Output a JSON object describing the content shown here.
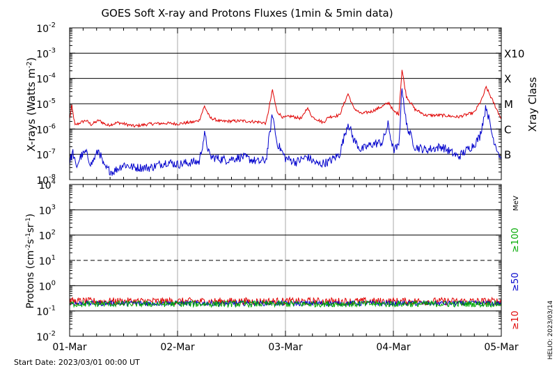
{
  "title": "GOES Soft X-ray and Protons Fluxes   (1min & 5min data)",
  "start_date": "Start Date: 2023/03/01 00:00 UT",
  "credit": "HELIO: 2023/03/14",
  "colors": {
    "xray_long": "#e00000",
    "xray_short": "#0000cc",
    "proton_10": "#e00000",
    "proton_50": "#0000cc",
    "proton_100": "#00aa00",
    "grid": "#000000",
    "day_lines": "#aaaaaa"
  },
  "chart_data": [
    {
      "type": "line",
      "panel": "xray",
      "ylabel_main": "X-rays (Watts m",
      "ylabel_exp": "-2",
      "ylabel_close": ")",
      "y_scale": "log",
      "ylim": [
        1e-08,
        0.01
      ],
      "y_ticks": [
        {
          "base": "10",
          "exp": "-8"
        },
        {
          "base": "10",
          "exp": "-7"
        },
        {
          "base": "10",
          "exp": "-6"
        },
        {
          "base": "10",
          "exp": "-5"
        },
        {
          "base": "10",
          "exp": "-4"
        },
        {
          "base": "10",
          "exp": "-3"
        },
        {
          "base": "10",
          "exp": "-2"
        }
      ],
      "right_label": "Xray Class",
      "class_labels": [
        {
          "label": "B",
          "value": 1e-07
        },
        {
          "label": "C",
          "value": 1e-06
        },
        {
          "label": "M",
          "value": 1e-05
        },
        {
          "label": "X",
          "value": 0.0001
        },
        {
          "label": "X10",
          "value": 0.001
        }
      ],
      "x_ticks": [
        "01-Mar",
        "02-Mar",
        "03-Mar",
        "04-Mar",
        "05-Mar"
      ],
      "xlim_days": [
        0,
        4
      ],
      "series": [
        {
          "name": "",
          "color_key": "xray_long",
          "points": [
            [
              0.0,
              2.5e-06
            ],
            [
              0.02,
              8e-06
            ],
            [
              0.05,
              1.4e-06
            ],
            [
              0.1,
              1.8e-06
            ],
            [
              0.15,
              2.2e-06
            ],
            [
              0.2,
              1.5e-06
            ],
            [
              0.27,
              2.2e-06
            ],
            [
              0.35,
              1.4e-06
            ],
            [
              0.45,
              1.8e-06
            ],
            [
              0.6,
              1.3e-06
            ],
            [
              0.75,
              1.6e-06
            ],
            [
              0.9,
              1.7e-06
            ],
            [
              1.0,
              1.6e-06
            ],
            [
              1.15,
              1.9e-06
            ],
            [
              1.2,
              2.2e-06
            ],
            [
              1.25,
              8e-06
            ],
            [
              1.3,
              2.8e-06
            ],
            [
              1.4,
              2e-06
            ],
            [
              1.6,
              2.1e-06
            ],
            [
              1.75,
              1.9e-06
            ],
            [
              1.82,
              1.7e-06
            ],
            [
              1.88,
              3.5e-05
            ],
            [
              1.92,
              5e-06
            ],
            [
              1.98,
              2.8e-06
            ],
            [
              2.05,
              3.2e-06
            ],
            [
              2.15,
              2.6e-06
            ],
            [
              2.2,
              7e-06
            ],
            [
              2.25,
              3e-06
            ],
            [
              2.35,
              1.8e-06
            ],
            [
              2.4,
              3e-06
            ],
            [
              2.5,
              3.5e-06
            ],
            [
              2.58,
              2.5e-05
            ],
            [
              2.63,
              7e-06
            ],
            [
              2.7,
              4e-06
            ],
            [
              2.8,
              5e-06
            ],
            [
              2.9,
              8e-06
            ],
            [
              2.96,
              1.1e-05
            ],
            [
              3.0,
              5e-06
            ],
            [
              3.05,
              4e-06
            ],
            [
              3.08,
              0.00022
            ],
            [
              3.12,
              2e-05
            ],
            [
              3.2,
              6e-06
            ],
            [
              3.3,
              3.5e-06
            ],
            [
              3.45,
              3.5e-06
            ],
            [
              3.6,
              3e-06
            ],
            [
              3.75,
              4.5e-06
            ],
            [
              3.82,
              1.5e-05
            ],
            [
              3.86,
              4.5e-05
            ],
            [
              3.92,
              1.3e-05
            ],
            [
              4.0,
              2.5e-06
            ]
          ]
        },
        {
          "name": "",
          "color_key": "xray_short",
          "points": [
            [
              0.0,
              5e-08
            ],
            [
              0.03,
              1.2e-07
            ],
            [
              0.06,
              3e-08
            ],
            [
              0.1,
              8e-08
            ],
            [
              0.15,
              1.2e-07
            ],
            [
              0.2,
              4e-08
            ],
            [
              0.27,
              1.5e-07
            ],
            [
              0.32,
              3e-08
            ],
            [
              0.4,
              2e-08
            ],
            [
              0.5,
              4e-08
            ],
            [
              0.6,
              3e-08
            ],
            [
              0.75,
              3e-08
            ],
            [
              0.9,
              5e-08
            ],
            [
              1.0,
              4e-08
            ],
            [
              1.15,
              5e-08
            ],
            [
              1.2,
              5e-08
            ],
            [
              1.25,
              6e-07
            ],
            [
              1.3,
              8e-08
            ],
            [
              1.45,
              6e-08
            ],
            [
              1.6,
              8e-08
            ],
            [
              1.75,
              5e-08
            ],
            [
              1.82,
              6e-08
            ],
            [
              1.88,
              4e-06
            ],
            [
              1.92,
              3e-07
            ],
            [
              2.0,
              7e-08
            ],
            [
              2.1,
              5e-08
            ],
            [
              2.2,
              8e-08
            ],
            [
              2.3,
              4e-08
            ],
            [
              2.4,
              5e-08
            ],
            [
              2.5,
              1e-07
            ],
            [
              2.58,
              1.8e-06
            ],
            [
              2.63,
              4e-07
            ],
            [
              2.7,
              1.5e-07
            ],
            [
              2.8,
              2.5e-07
            ],
            [
              2.9,
              3e-07
            ],
            [
              2.95,
              1.5e-06
            ],
            [
              3.0,
              1.5e-07
            ],
            [
              3.05,
              2e-07
            ],
            [
              3.08,
              5e-05
            ],
            [
              3.12,
              1.5e-06
            ],
            [
              3.2,
              2e-07
            ],
            [
              3.3,
              1.5e-07
            ],
            [
              3.45,
              2e-07
            ],
            [
              3.6,
              8e-08
            ],
            [
              3.75,
              2.5e-07
            ],
            [
              3.8,
              5e-07
            ],
            [
              3.86,
              8e-06
            ],
            [
              3.92,
              5e-07
            ],
            [
              4.0,
              6e-08
            ]
          ]
        }
      ]
    },
    {
      "type": "line",
      "panel": "protons",
      "ylabel_main": "Protons (cm",
      "ylabel_mid1": "-2",
      "ylabel_s": "s",
      "ylabel_mid2": "-1",
      "ylabel_sr": "sr",
      "ylabel_mid3": "-1",
      "ylabel_close": ")",
      "y_scale": "log",
      "ylim": [
        0.01,
        10000.0
      ],
      "y_ticks": [
        {
          "base": "10",
          "exp": "-2"
        },
        {
          "base": "10",
          "exp": "-1"
        },
        {
          "base": "10",
          "exp": "0"
        },
        {
          "base": "10",
          "exp": "1"
        },
        {
          "base": "10",
          "exp": "2"
        },
        {
          "base": "10",
          "exp": "3"
        },
        {
          "base": "10",
          "exp": "4"
        }
      ],
      "threshold": 10,
      "unit_label": "MeV",
      "energy_labels": [
        {
          "label": "≥100",
          "color_key": "proton_100"
        },
        {
          "label": "≥50",
          "color_key": "proton_50"
        },
        {
          "label": "≥10",
          "color_key": "proton_10"
        }
      ],
      "x_ticks": [
        "01-Mar",
        "02-Mar",
        "03-Mar",
        "04-Mar",
        "05-Mar"
      ],
      "xlim_days": [
        0,
        4
      ],
      "series": [
        {
          "name": "≥10",
          "color_key": "proton_10",
          "level": 0.24,
          "jitter": 0.3
        },
        {
          "name": "≥50",
          "color_key": "proton_50",
          "level": 0.2,
          "jitter": 0.2
        },
        {
          "name": "≥100",
          "color_key": "proton_100",
          "level": 0.19,
          "jitter": 0.25
        }
      ]
    }
  ]
}
